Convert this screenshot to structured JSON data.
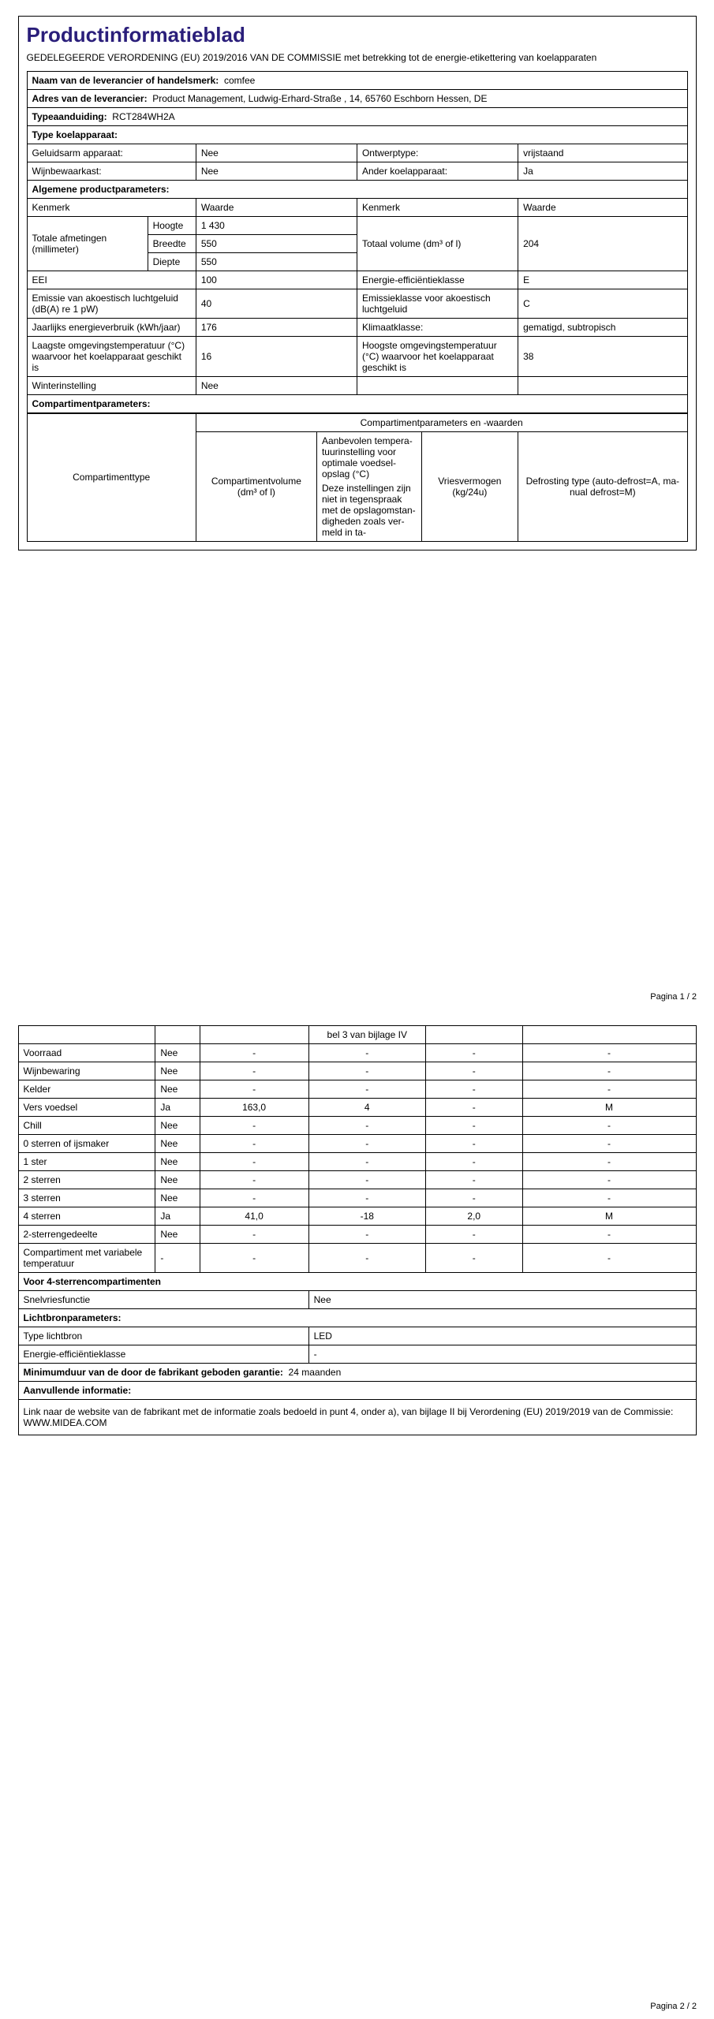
{
  "title": "Productinformatieblad",
  "subtitle": "GEDELEGEERDE VERORDENING (EU) 2019/2016 VAN DE COMMISSIE met betrekking tot de energie-etikettering van koelapparaten",
  "supplier_name_label": "Naam van de leverancier of handelsmerk:",
  "supplier_name_value": "comfee",
  "supplier_address_label": "Adres van de leverancier:",
  "supplier_address_value": "Product Management, Ludwig-Erhard-Straße , 14, 65760 Eschborn Hessen, DE",
  "type_id_label": "Typeaanduiding:",
  "type_id_value": "RCT284WH2A",
  "appliance_type_label": "Type koelapparaat:",
  "low_noise_label": "Geluidsarm apparaat:",
  "low_noise_value": "Nee",
  "design_type_label": "Ontwerptype:",
  "design_type_value": "vrijstaand",
  "wine_label": "Wijnbewaarkast:",
  "wine_value": "Nee",
  "other_appliance_label": "Ander koelapparaat:",
  "other_appliance_value": "Ja",
  "general_params_label": "Algemene productparameters:",
  "attr_label": "Kenmerk",
  "value_label": "Waarde",
  "dimensions_label": "Totale afmetingen (millimeter)",
  "height_label": "Hoog­te",
  "height_value": "1 430",
  "width_label": "Breed­te",
  "width_value": "550",
  "depth_label": "Diep­te",
  "depth_value": "550",
  "total_volume_label": "Totaal volume (dm³ of l)",
  "total_volume_value": "204",
  "eei_label": "EEI",
  "eei_value": "100",
  "eff_class_label": "Energie-efficiëntieklasse",
  "eff_class_value": "E",
  "noise_emission_label": "Emissie van akoestisch luchtge­luid (dB(A) re 1 pW)",
  "noise_emission_value": "40",
  "noise_class_label": "Emissieklasse voor akoes­tisch luchtgeluid",
  "noise_class_value": "C",
  "annual_energy_label": "Jaarlijks energieverbruik (kWh/jaar)",
  "annual_energy_value": "176",
  "climate_class_label": "Klimaatklasse:",
  "climate_class_value": "gematigd, subtropisch",
  "min_temp_label": "Laagste omgevingstemperatuur (°C) waarvoor het koelapparaat geschikt is",
  "min_temp_value": "16",
  "max_temp_label": "Hoogste omgevingstempe­ratuur (°C) waarvoor het koelapparaat geschikt is",
  "max_temp_value": "38",
  "winter_label": "Winterinstelling",
  "winter_value": "Nee",
  "compartment_params_label": "Compartimentparameters:",
  "compartment_type_label": "Compartimenttype",
  "compartment_params_header": "Compartimentparameters en -waarden",
  "comp_volume_label": "Compartiment­volume (dm³ of l)",
  "recommended_temp_label_p1": "Aanbevolen tempera­tuurinstel­ling voor optimale voedsel­opslag (°C)",
  "recommended_temp_label_p2": "Deze instel­lingen zijn niet in te­genspraak met de op­slagomstan­digheden zoals ver­meld in ta-",
  "recommended_temp_label_p2_cont": "bel 3 van bijlage IV",
  "freeze_capacity_label": "Vriesver­mogen (kg/24u)",
  "defrost_label": "Defrosting type (au­to-defrost=A, ma­nual defrost=M)",
  "rows": [
    {
      "name": "Voorraad",
      "present": "Nee",
      "vol": "-",
      "temp": "-",
      "freeze": "-",
      "defrost": "-"
    },
    {
      "name": "Wijnbewaring",
      "present": "Nee",
      "vol": "-",
      "temp": "-",
      "freeze": "-",
      "defrost": "-"
    },
    {
      "name": "Kelder",
      "present": "Nee",
      "vol": "-",
      "temp": "-",
      "freeze": "-",
      "defrost": "-"
    },
    {
      "name": "Vers voedsel",
      "present": "Ja",
      "vol": "163,0",
      "temp": "4",
      "freeze": "-",
      "defrost": "M"
    },
    {
      "name": "Chill",
      "present": "Nee",
      "vol": "-",
      "temp": "-",
      "freeze": "-",
      "defrost": "-"
    },
    {
      "name": "0 sterren of ijsmaker",
      "present": "Nee",
      "vol": "-",
      "temp": "-",
      "freeze": "-",
      "defrost": "-"
    },
    {
      "name": "1 ster",
      "present": "Nee",
      "vol": "-",
      "temp": "-",
      "freeze": "-",
      "defrost": "-"
    },
    {
      "name": "2 sterren",
      "present": "Nee",
      "vol": "-",
      "temp": "-",
      "freeze": "-",
      "defrost": "-"
    },
    {
      "name": "3 sterren",
      "present": "Nee",
      "vol": "-",
      "temp": "-",
      "freeze": "-",
      "defrost": "-"
    },
    {
      "name": "4 sterren",
      "present": "Ja",
      "vol": "41,0",
      "temp": "-18",
      "freeze": "2,0",
      "defrost": "M"
    },
    {
      "name": "2-sterrengedeelte",
      "present": "Nee",
      "vol": "-",
      "temp": "-",
      "freeze": "-",
      "defrost": "-"
    },
    {
      "name": "Compartiment met va­riabele temperatuur",
      "present": "-",
      "vol": "-",
      "temp": "-",
      "freeze": "-",
      "defrost": "-"
    }
  ],
  "four_star_label": "Voor 4-sterrencompartimenten",
  "quick_freeze_label": "Snelvriesfunctie",
  "quick_freeze_value": "Nee",
  "light_params_label": "Lichtbronparameters:",
  "light_type_label": "Type lichtbron",
  "light_type_value": "LED",
  "light_eff_label": "Energie-efficiëntieklasse",
  "light_eff_value": "-",
  "warranty_label": "Minimumduur van de door de fabrikant geboden garantie:",
  "warranty_value": "24 maanden",
  "additional_label": "Aanvullende informatie:",
  "additional_text": "Link naar de website van de fabrikant met de informatie zoals bedoeld in punt 4, onder a), van bijlage II bij Verordening (EU) 2019/2019 van de Commissie:  WWW.MIDEA.COM",
  "page1": "Pagina 1 / 2",
  "page2": "Pagina 2 / 2"
}
